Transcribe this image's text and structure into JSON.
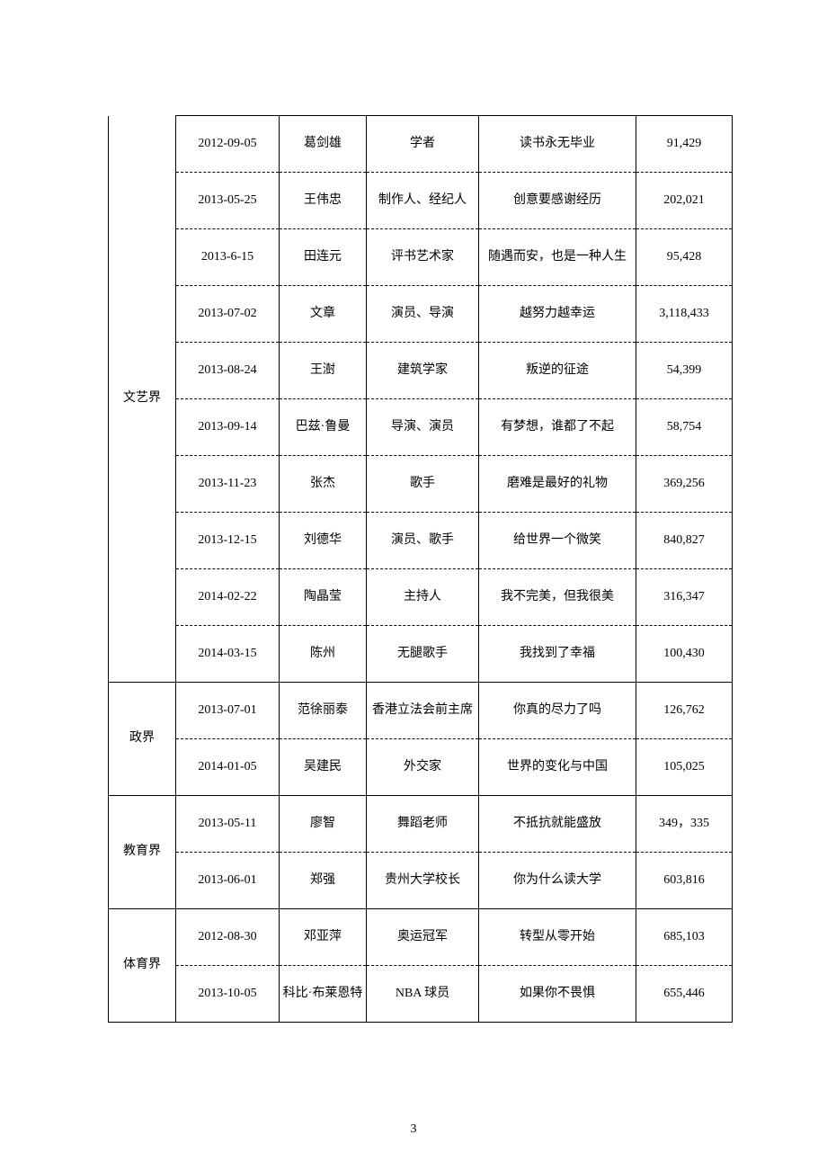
{
  "page_number": "3",
  "groups": [
    {
      "category": "文艺界",
      "rows": [
        {
          "date": "2012-09-05",
          "name": "葛剑雄",
          "role": "学者",
          "title": "读书永无毕业",
          "count": "91,429"
        },
        {
          "date": "2013-05-25",
          "name": "王伟忠",
          "role": "制作人、经纪人",
          "title": "创意要感谢经历",
          "count": "202,021"
        },
        {
          "date": "2013-6-15",
          "name": "田连元",
          "role": "评书艺术家",
          "title": "随遇而安，也是一种人生",
          "count": "95,428"
        },
        {
          "date": "2013-07-02",
          "name": "文章",
          "role": "演员、导演",
          "title": "越努力越幸运",
          "count": "3,118,433"
        },
        {
          "date": "2013-08-24",
          "name": "王澍",
          "role": "建筑学家",
          "title": "叛逆的征途",
          "count": "54,399"
        },
        {
          "date": "2013-09-14",
          "name": "巴兹·鲁曼",
          "role": "导演、演员",
          "title": "有梦想，谁都了不起",
          "count": "58,754"
        },
        {
          "date": "2013-11-23",
          "name": "张杰",
          "role": "歌手",
          "title": "磨难是最好的礼物",
          "count": "369,256"
        },
        {
          "date": "2013-12-15",
          "name": "刘德华",
          "role": "演员、歌手",
          "title": "给世界一个微笑",
          "count": "840,827"
        },
        {
          "date": "2014-02-22",
          "name": "陶晶莹",
          "role": "主持人",
          "title": "我不完美，但我很美",
          "count": "316,347"
        },
        {
          "date": "2014-03-15",
          "name": "陈州",
          "role": "无腿歌手",
          "title": "我找到了幸福",
          "count": "100,430"
        }
      ]
    },
    {
      "category": "政界",
      "rows": [
        {
          "date": "2013-07-01",
          "name": "范徐丽泰",
          "role": "香港立法会前主席",
          "title": "你真的尽力了吗",
          "count": "126,762"
        },
        {
          "date": "2014-01-05",
          "name": "吴建民",
          "role": "外交家",
          "title": "世界的变化与中国",
          "count": "105,025"
        }
      ]
    },
    {
      "category": "教育界",
      "rows": [
        {
          "date": "2013-05-11",
          "name": "廖智",
          "role": "舞蹈老师",
          "title": "不抵抗就能盛放",
          "count": "349，335"
        },
        {
          "date": "2013-06-01",
          "name": "郑强",
          "role": "贵州大学校长",
          "title": "你为什么读大学",
          "count": "603,816"
        }
      ]
    },
    {
      "category": "体育界",
      "rows": [
        {
          "date": "2012-08-30",
          "name": "邓亚萍",
          "role": "奥运冠军",
          "title": "转型从零开始",
          "count": "685,103"
        },
        {
          "date": "2013-10-05",
          "name": "科比·布莱恩特",
          "role": "NBA 球员",
          "title": "如果你不畏惧",
          "count": "655,446"
        }
      ]
    }
  ]
}
